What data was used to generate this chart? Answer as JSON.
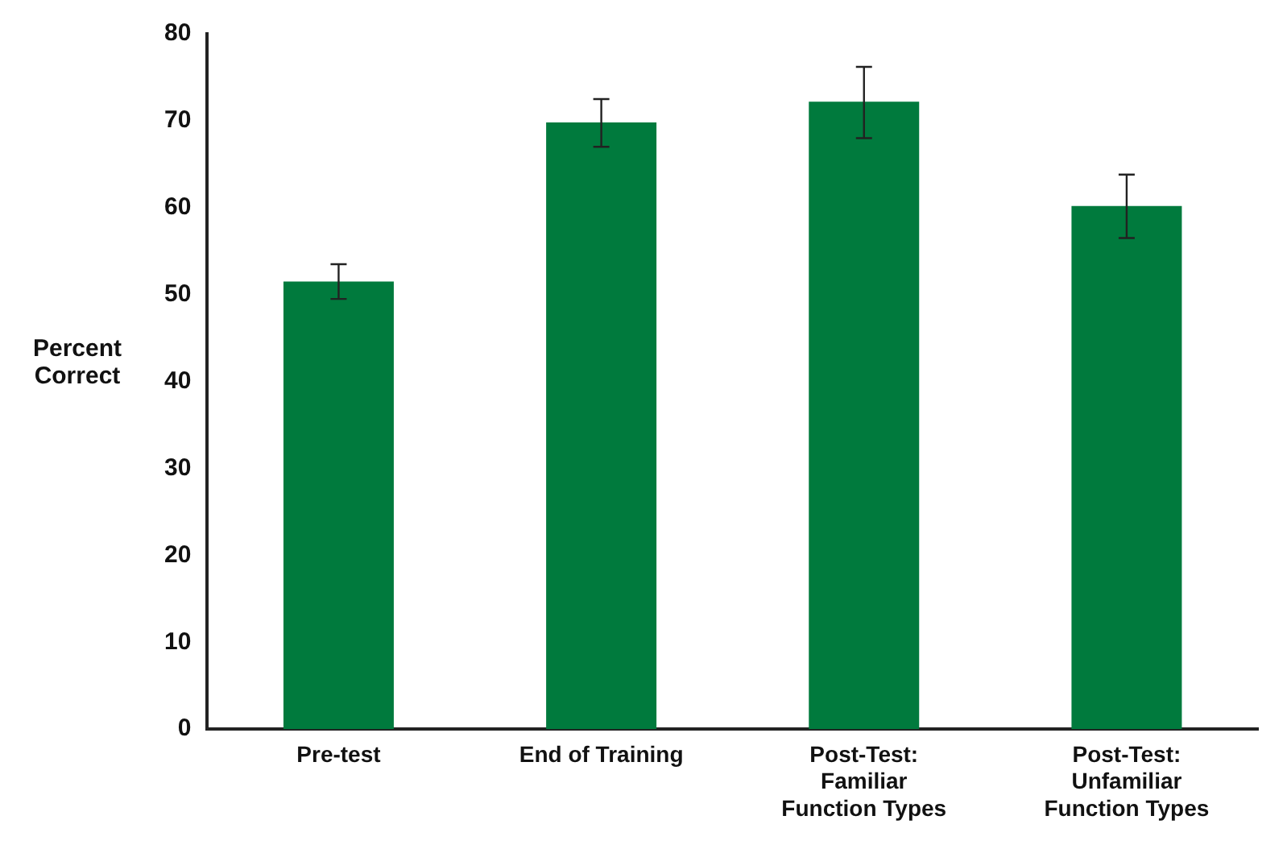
{
  "chart_data": {
    "type": "bar",
    "ylabel": "Percent Correct",
    "categories": [
      "Pre-test",
      "End of Training",
      "Post-Test: Familiar Function Types",
      "Post-Test: Unfamiliar Function Types"
    ],
    "values": [
      51.5,
      69.8,
      72.2,
      60.2
    ],
    "errors": [
      [
        49.5,
        53.5
      ],
      [
        67,
        72.5
      ],
      [
        68,
        76.2
      ],
      [
        56.5,
        63.8
      ]
    ],
    "color": "#007a3d",
    "ylim": [
      0,
      80
    ],
    "yticks": [
      0,
      10,
      20,
      30,
      40,
      50,
      60,
      70,
      80
    ],
    "grid": false,
    "legend": false
  }
}
